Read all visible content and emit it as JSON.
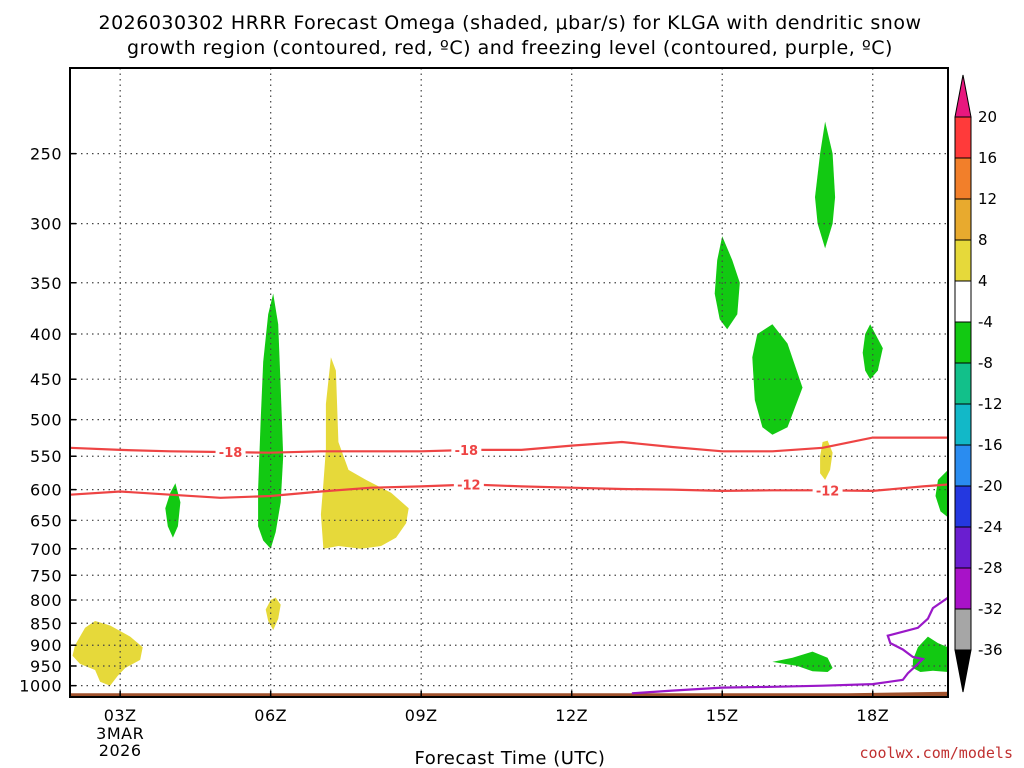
{
  "title": {
    "line1": "2026030302 HRRR Forecast Omega (shaded, μbar/s) for KLGA with dendritic snow",
    "line2": "growth region (contoured, red, ºC) and freezing level (contoured, purple, ºC)"
  },
  "credit": "coolwx.com/models",
  "chart_data": {
    "type": "heatmap",
    "title": "2026030302 HRRR Forecast Omega (shaded, μbar/s) for KLGA with dendritic snow growth region (contoured, red, ºC) and freezing level (contoured, purple, ºC)",
    "xlabel": "Forecast Time (UTC)",
    "ylabel": "",
    "x_ticks": [
      {
        "hour": 3,
        "label": "03Z",
        "sub1": "3MAR",
        "sub2": "2026"
      },
      {
        "hour": 6,
        "label": "06Z"
      },
      {
        "hour": 9,
        "label": "09Z"
      },
      {
        "hour": 12,
        "label": "12Z"
      },
      {
        "hour": 15,
        "label": "15Z"
      },
      {
        "hour": 18,
        "label": "18Z"
      }
    ],
    "xlim": [
      2,
      19.5
    ],
    "y_ticks": [
      250,
      300,
      350,
      400,
      450,
      500,
      550,
      600,
      650,
      700,
      750,
      800,
      850,
      900,
      950,
      1000
    ],
    "ylim": [
      1030,
      200
    ],
    "grid": true,
    "colorbar": {
      "levels": [
        20,
        16,
        12,
        8,
        4,
        -4,
        -8,
        -12,
        -16,
        -20,
        -24,
        -28,
        -32,
        -36
      ],
      "colors": [
        "#ff3a3a",
        "#f27f2a",
        "#e8aa2e",
        "#e6d93a",
        "#ffffff",
        "#12c912",
        "#12c08a",
        "#12b8c8",
        "#2a8cf0",
        "#2438e0",
        "#6a1ed0",
        "#a812c8",
        "#a6a6a6"
      ],
      "top_arrow_color": "#e8177e",
      "bottom_arrow_color": "#000000"
    },
    "shaded_regions": [
      {
        "value_range": "4 to 8",
        "color": "#e6d93a",
        "points": [
          [
            2.1,
            900
          ],
          [
            2.3,
            860
          ],
          [
            2.5,
            845
          ],
          [
            2.8,
            855
          ],
          [
            3.2,
            880
          ],
          [
            3.45,
            905
          ],
          [
            3.4,
            935
          ],
          [
            3.1,
            955
          ],
          [
            2.95,
            975
          ],
          [
            2.8,
            1000
          ],
          [
            2.6,
            990
          ],
          [
            2.5,
            960
          ],
          [
            2.2,
            945
          ],
          [
            2.05,
            925
          ]
        ]
      },
      {
        "value_range": "4 to 8",
        "color": "#e6d93a",
        "points": [
          [
            5.9,
            820
          ],
          [
            6.0,
            800
          ],
          [
            6.1,
            795
          ],
          [
            6.2,
            810
          ],
          [
            6.15,
            840
          ],
          [
            6.05,
            865
          ],
          [
            5.95,
            845
          ]
        ]
      },
      {
        "value_range": "4 to 8",
        "color": "#e6d93a",
        "points": [
          [
            7.05,
            700
          ],
          [
            7.0,
            640
          ],
          [
            7.05,
            590
          ],
          [
            7.1,
            540
          ],
          [
            7.1,
            480
          ],
          [
            7.2,
            425
          ],
          [
            7.3,
            440
          ],
          [
            7.35,
            530
          ],
          [
            7.55,
            570
          ],
          [
            7.9,
            585
          ],
          [
            8.4,
            605
          ],
          [
            8.75,
            630
          ],
          [
            8.7,
            655
          ],
          [
            8.5,
            680
          ],
          [
            8.2,
            695
          ],
          [
            7.8,
            700
          ],
          [
            7.35,
            695
          ]
        ]
      },
      {
        "value_range": "4 to 8",
        "color": "#e6d93a",
        "points": [
          [
            16.95,
            550
          ],
          [
            17.0,
            530
          ],
          [
            17.1,
            528
          ],
          [
            17.2,
            545
          ],
          [
            17.15,
            570
          ],
          [
            17.05,
            585
          ],
          [
            16.95,
            575
          ]
        ]
      },
      {
        "value_range": "-8 to -4",
        "color": "#12c912",
        "points": [
          [
            3.9,
            630
          ],
          [
            4.0,
            605
          ],
          [
            4.1,
            590
          ],
          [
            4.2,
            620
          ],
          [
            4.15,
            660
          ],
          [
            4.05,
            680
          ],
          [
            3.95,
            660
          ]
        ]
      },
      {
        "value_range": "-8 to -4",
        "color": "#12c912",
        "points": [
          [
            5.75,
            600
          ],
          [
            5.8,
            500
          ],
          [
            5.85,
            430
          ],
          [
            5.95,
            380
          ],
          [
            6.05,
            360
          ],
          [
            6.15,
            390
          ],
          [
            6.2,
            460
          ],
          [
            6.25,
            550
          ],
          [
            6.2,
            620
          ],
          [
            6.1,
            670
          ],
          [
            6.0,
            700
          ],
          [
            5.85,
            685
          ],
          [
            5.75,
            660
          ]
        ]
      },
      {
        "value_range": "-8 to -4",
        "color": "#12c912",
        "points": [
          [
            14.85,
            360
          ],
          [
            14.9,
            330
          ],
          [
            15.0,
            310
          ],
          [
            15.2,
            330
          ],
          [
            15.35,
            350
          ],
          [
            15.3,
            380
          ],
          [
            15.1,
            395
          ],
          [
            14.95,
            385
          ]
        ]
      },
      {
        "value_range": "-8 to -4",
        "color": "#12c912",
        "points": [
          [
            16.85,
            280
          ],
          [
            16.95,
            250
          ],
          [
            17.05,
            230
          ],
          [
            17.2,
            250
          ],
          [
            17.25,
            280
          ],
          [
            17.2,
            300
          ],
          [
            17.05,
            320
          ],
          [
            16.9,
            300
          ]
        ]
      },
      {
        "value_range": "-8 to -4",
        "color": "#12c912",
        "points": [
          [
            15.6,
            425
          ],
          [
            15.7,
            400
          ],
          [
            16.0,
            390
          ],
          [
            16.3,
            410
          ],
          [
            16.6,
            460
          ],
          [
            16.3,
            510
          ],
          [
            16.0,
            520
          ],
          [
            15.8,
            510
          ],
          [
            15.65,
            475
          ]
        ]
      },
      {
        "value_range": "-8 to -4",
        "color": "#12c912",
        "points": [
          [
            17.8,
            420
          ],
          [
            17.85,
            400
          ],
          [
            17.95,
            390
          ],
          [
            18.2,
            415
          ],
          [
            18.1,
            440
          ],
          [
            17.95,
            450
          ],
          [
            17.85,
            440
          ]
        ]
      },
      {
        "value_range": "-8 to -4",
        "color": "#12c912",
        "points": [
          [
            16.0,
            940
          ],
          [
            16.4,
            930
          ],
          [
            16.8,
            915
          ],
          [
            17.1,
            930
          ],
          [
            17.2,
            955
          ],
          [
            17.1,
            965
          ],
          [
            16.8,
            963
          ],
          [
            16.5,
            950
          ]
        ]
      },
      {
        "value_range": "-8 to -4",
        "color": "#12c912",
        "points": [
          [
            19.3,
            585
          ],
          [
            19.5,
            570
          ],
          [
            19.5,
            645
          ],
          [
            19.35,
            635
          ],
          [
            19.25,
            610
          ]
        ]
      },
      {
        "value_range": "-8 to -4",
        "color": "#12c912",
        "points": [
          [
            18.8,
            935
          ],
          [
            18.9,
            905
          ],
          [
            19.1,
            880
          ],
          [
            19.3,
            895
          ],
          [
            19.5,
            905
          ],
          [
            19.5,
            965
          ],
          [
            19.2,
            962
          ],
          [
            18.95,
            965
          ],
          [
            18.8,
            955
          ]
        ]
      }
    ],
    "contours": [
      {
        "label": "-18",
        "color": "#ee4444",
        "label_at": [
          5.2,
          9.9
        ],
        "points": [
          [
            2,
            538
          ],
          [
            3,
            541
          ],
          [
            4,
            543
          ],
          [
            5,
            544
          ],
          [
            6,
            545
          ],
          [
            7,
            543
          ],
          [
            8,
            543
          ],
          [
            9,
            543
          ],
          [
            10,
            541
          ],
          [
            11,
            541
          ],
          [
            12,
            535
          ],
          [
            13,
            530
          ],
          [
            14,
            537
          ],
          [
            15,
            543
          ],
          [
            16,
            543
          ],
          [
            17,
            538
          ],
          [
            18,
            524
          ],
          [
            19,
            524
          ],
          [
            19.5,
            524
          ]
        ]
      },
      {
        "label": "-12",
        "color": "#ee4444",
        "label_at": [
          9.95,
          17.1
        ],
        "points": [
          [
            2,
            608
          ],
          [
            3,
            603
          ],
          [
            4,
            608
          ],
          [
            5,
            613
          ],
          [
            6,
            610
          ],
          [
            7,
            603
          ],
          [
            8,
            597
          ],
          [
            9,
            595
          ],
          [
            10,
            592
          ],
          [
            11,
            595
          ],
          [
            12,
            597
          ],
          [
            13,
            599
          ],
          [
            14,
            600
          ],
          [
            15,
            602
          ],
          [
            16,
            601
          ],
          [
            17,
            601
          ],
          [
            18,
            602
          ],
          [
            19,
            595
          ],
          [
            19.5,
            592
          ]
        ]
      },
      {
        "label": "0",
        "color": "#9a18c8",
        "points": [
          [
            13.2,
            1020
          ],
          [
            14,
            1013
          ],
          [
            15,
            1005
          ],
          [
            16,
            1003
          ],
          [
            17,
            1000
          ],
          [
            18,
            996
          ],
          [
            18.6,
            985
          ],
          [
            18.7,
            968
          ],
          [
            18.9,
            945
          ],
          [
            19.0,
            933
          ],
          [
            18.8,
            928
          ],
          [
            18.6,
            910
          ],
          [
            18.35,
            895
          ],
          [
            18.3,
            878
          ],
          [
            18.9,
            860
          ],
          [
            19.1,
            840
          ],
          [
            19.2,
            817
          ],
          [
            19.5,
            795
          ]
        ]
      }
    ],
    "terrain": [
      [
        2,
        1020
      ],
      [
        17.5,
        1020
      ],
      [
        18.5,
        1018
      ],
      [
        19.5,
        1016
      ]
    ]
  }
}
